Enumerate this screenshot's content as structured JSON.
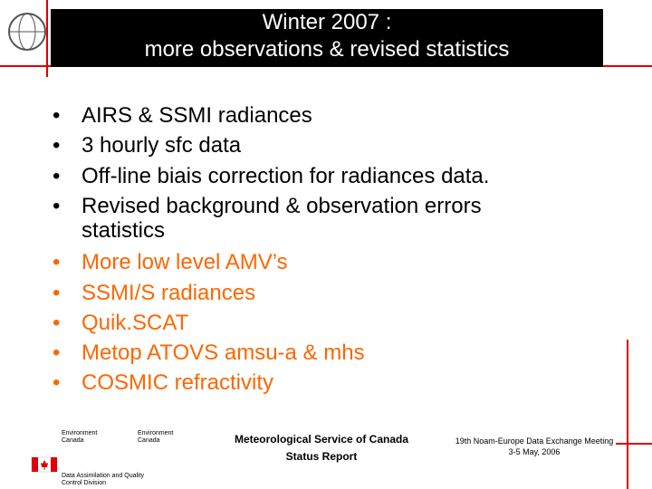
{
  "header": {
    "title_lines": [
      "Winter 2007 :",
      "more observations & revised statistics"
    ]
  },
  "bullets": [
    {
      "lines": [
        "AIRS & SSMI radiances"
      ],
      "color": "#000000"
    },
    {
      "lines": [
        "3 hourly sfc data"
      ],
      "color": "#000000"
    },
    {
      "lines": [
        "Off-line biais correction for radiances data."
      ],
      "color": "#000000"
    },
    {
      "lines": [
        "Revised background & observation errors",
        "statistics"
      ],
      "color": "#000000"
    },
    {
      "lines": [
        "More low level AMV’s"
      ],
      "color": "#ff6600"
    },
    {
      "lines": [
        "SSMI/S radiances"
      ],
      "color": "#ff6600"
    },
    {
      "lines": [
        "Quik.SCAT"
      ],
      "color": "#ff6600"
    },
    {
      "lines": [
        "Metop ATOVS amsu-a & mhs"
      ],
      "color": "#ff6600"
    },
    {
      "lines": [
        "COSMIC refractivity"
      ],
      "color": "#ff6600"
    }
  ],
  "bullet_symbol": "•",
  "footer": {
    "agency_en": [
      "Environment",
      "Canada"
    ],
    "agency_fr": [
      "Environment",
      "Canada"
    ],
    "division": [
      "Data Assimilation and Quality",
      "Control Division"
    ],
    "center": [
      "Meteorological Service of Canada",
      "Status Report"
    ],
    "right": [
      "19th Noam-Europe Data Exchange Meeting",
      "3-5 May, 2006"
    ]
  }
}
